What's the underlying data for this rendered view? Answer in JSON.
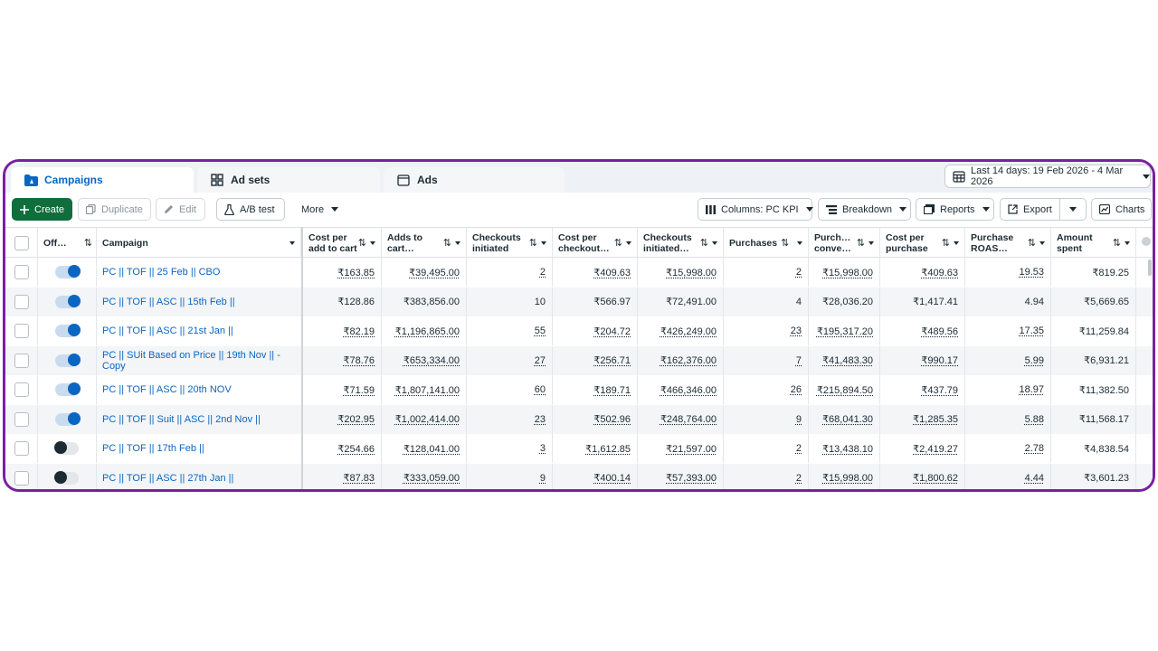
{
  "tabs": [
    {
      "label": "Campaigns",
      "icon": "folder-icon",
      "active": true
    },
    {
      "label": "Ad sets",
      "icon": "grid-icon",
      "active": false
    },
    {
      "label": "Ads",
      "icon": "ad-window-icon",
      "active": false
    }
  ],
  "date_range": "Last 14 days: 19 Feb 2026 - 4 Mar 2026",
  "toolbar": {
    "create": "Create",
    "duplicate": "Duplicate",
    "edit": "Edit",
    "ab_test": "A/B test",
    "more": "More",
    "columns": "Columns: PC KPI",
    "breakdown": "Breakdown",
    "reports": "Reports",
    "export": "Export",
    "charts": "Charts"
  },
  "columns": [
    "Off…",
    "Campaign",
    "Cost per add to cart",
    "Adds to cart…",
    "Checkouts initiated",
    "Cost per checkout…",
    "Checkouts initiated…",
    "Purchases",
    "Purch… conve…",
    "Cost per purchase",
    "Purchase ROAS…",
    "Amount spent"
  ],
  "rows": [
    {
      "on": true,
      "name": "PC || TOF || 25 Feb || CBO",
      "cpatc": "₹163.85",
      "atc": "₹39,495.00",
      "ci": "2",
      "cpci": "₹409.63",
      "civ": "₹15,998.00",
      "purchases": "2",
      "pcv": "₹15,998.00",
      "cpp": "₹409.63",
      "roas": "19.53",
      "spent": "₹819.25"
    },
    {
      "on": true,
      "name": "PC || TOF || ASC || 15th Feb ||",
      "cpatc": "₹128.86",
      "atc": "₹383,856.00",
      "ci": "10",
      "cpci": "₹566.97",
      "civ": "₹72,491.00",
      "purchases": "4",
      "pcv": "₹28,036.20",
      "cpp": "₹1,417.41",
      "roas": "4.94",
      "spent": "₹5,669.65"
    },
    {
      "on": true,
      "name": "PC || TOF || ASC || 21st Jan ||",
      "cpatc": "₹82.19",
      "atc": "₹1,196,865.00",
      "ci": "55",
      "cpci": "₹204.72",
      "civ": "₹426,249.00",
      "purchases": "23",
      "pcv": "₹195,317.20",
      "cpp": "₹489.56",
      "roas": "17.35",
      "spent": "₹11,259.84"
    },
    {
      "on": true,
      "name": "PC || SUit Based on Price || 19th Nov || - Copy",
      "cpatc": "₹78.76",
      "atc": "₹653,334.00",
      "ci": "27",
      "cpci": "₹256.71",
      "civ": "₹162,376.00",
      "purchases": "7",
      "pcv": "₹41,483.30",
      "cpp": "₹990.17",
      "roas": "5.99",
      "spent": "₹6,931.21"
    },
    {
      "on": true,
      "name": "PC || TOF || ASC || 20th NOV",
      "cpatc": "₹71.59",
      "atc": "₹1,807,141.00",
      "ci": "60",
      "cpci": "₹189.71",
      "civ": "₹466,346.00",
      "purchases": "26",
      "pcv": "₹215,894.50",
      "cpp": "₹437.79",
      "roas": "18.97",
      "spent": "₹11,382.50"
    },
    {
      "on": true,
      "name": "PC || TOF || Suit || ASC || 2nd Nov ||",
      "cpatc": "₹202.95",
      "atc": "₹1,002,414.00",
      "ci": "23",
      "cpci": "₹502.96",
      "civ": "₹248,764.00",
      "purchases": "9",
      "pcv": "₹68,041.30",
      "cpp": "₹1,285.35",
      "roas": "5.88",
      "spent": "₹11,568.17"
    },
    {
      "on": false,
      "name": "PC || TOF || 17th Feb ||",
      "cpatc": "₹254.66",
      "atc": "₹128,041.00",
      "ci": "3",
      "cpci": "₹1,612.85",
      "civ": "₹21,597.00",
      "purchases": "2",
      "pcv": "₹13,438.10",
      "cpp": "₹2,419.27",
      "roas": "2.78",
      "spent": "₹4,838.54"
    },
    {
      "on": false,
      "name": "PC || TOF || ASC || 27th Jan ||",
      "cpatc": "₹87.83",
      "atc": "₹333,059.00",
      "ci": "9",
      "cpci": "₹400.14",
      "civ": "₹57,393.00",
      "purchases": "2",
      "pcv": "₹15,998.00",
      "cpp": "₹1,800.62",
      "roas": "4.44",
      "spent": "₹3,601.23"
    }
  ]
}
